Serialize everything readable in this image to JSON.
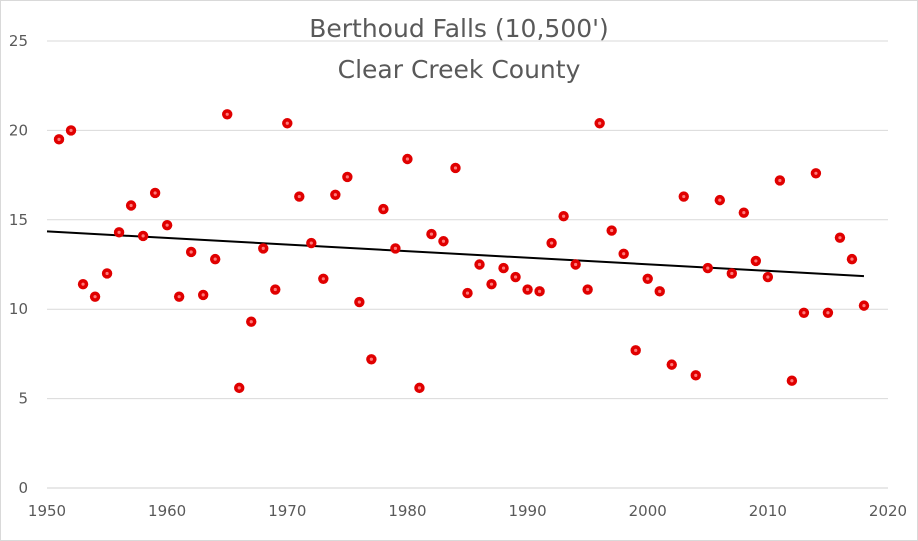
{
  "chart_data": {
    "type": "scatter",
    "title": "Berthoud Falls (10,500')",
    "subtitle": "Clear Creek County",
    "xlim": [
      1950,
      2020
    ],
    "ylim": [
      0,
      25
    ],
    "x_ticks": [
      "1950",
      "1960",
      "1970",
      "1980",
      "1990",
      "2000",
      "2010",
      "2020"
    ],
    "y_ticks": [
      "0",
      "5",
      "10",
      "15",
      "20",
      "25"
    ],
    "grid": "horizontal",
    "marker_color": "#e00000",
    "trendline_color": "#000000",
    "series": [
      {
        "points": [
          [
            1951,
            19.5
          ],
          [
            1952,
            20.0
          ],
          [
            1953,
            11.4
          ],
          [
            1954,
            10.7
          ],
          [
            1955,
            12.0
          ],
          [
            1956,
            14.3
          ],
          [
            1957,
            15.8
          ],
          [
            1958,
            14.1
          ],
          [
            1959,
            16.5
          ],
          [
            1960,
            14.7
          ],
          [
            1961,
            10.7
          ],
          [
            1962,
            13.2
          ],
          [
            1963,
            10.8
          ],
          [
            1964,
            12.8
          ],
          [
            1965,
            20.9
          ],
          [
            1966,
            5.6
          ],
          [
            1967,
            9.3
          ],
          [
            1968,
            13.4
          ],
          [
            1969,
            11.1
          ],
          [
            1970,
            20.4
          ],
          [
            1971,
            16.3
          ],
          [
            1972,
            13.7
          ],
          [
            1973,
            11.7
          ],
          [
            1974,
            16.4
          ],
          [
            1975,
            17.4
          ],
          [
            1976,
            10.4
          ],
          [
            1977,
            7.2
          ],
          [
            1978,
            15.6
          ],
          [
            1979,
            13.4
          ],
          [
            1980,
            18.4
          ],
          [
            1981,
            5.6
          ],
          [
            1982,
            14.2
          ],
          [
            1983,
            13.8
          ],
          [
            1984,
            17.9
          ],
          [
            1985,
            10.9
          ],
          [
            1986,
            12.5
          ],
          [
            1987,
            11.4
          ],
          [
            1988,
            12.3
          ],
          [
            1989,
            11.8
          ],
          [
            1990,
            11.1
          ],
          [
            1991,
            11.0
          ],
          [
            1992,
            13.7
          ],
          [
            1993,
            15.2
          ],
          [
            1994,
            12.5
          ],
          [
            1995,
            11.1
          ],
          [
            1996,
            20.4
          ],
          [
            1997,
            14.4
          ],
          [
            1998,
            13.1
          ],
          [
            1999,
            7.7
          ],
          [
            2000,
            11.7
          ],
          [
            2001,
            11.0
          ],
          [
            2002,
            6.9
          ],
          [
            2003,
            16.3
          ],
          [
            2004,
            6.3
          ],
          [
            2005,
            12.3
          ],
          [
            2006,
            16.1
          ],
          [
            2007,
            12.0
          ],
          [
            2008,
            15.4
          ],
          [
            2009,
            12.7
          ],
          [
            2010,
            11.8
          ],
          [
            2011,
            17.2
          ],
          [
            2012,
            6.0
          ],
          [
            2013,
            9.8
          ],
          [
            2014,
            17.6
          ],
          [
            2015,
            9.8
          ],
          [
            2016,
            14.0
          ],
          [
            2017,
            12.8
          ],
          [
            2018,
            10.2
          ]
        ]
      }
    ],
    "trendline": {
      "x": [
        1950,
        2018
      ],
      "y": [
        14.35,
        11.85
      ]
    }
  }
}
